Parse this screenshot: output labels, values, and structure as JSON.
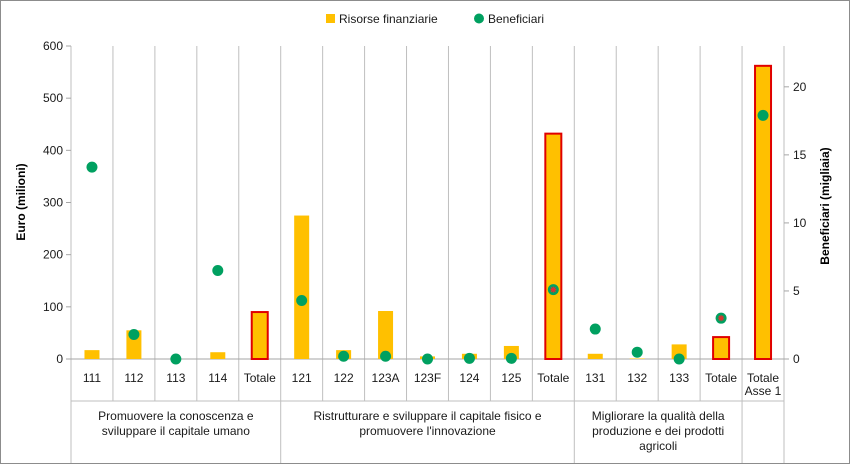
{
  "chart_data": {
    "type": "bar",
    "legend": [
      {
        "name": "Risorse finanziarie",
        "color": "#FFC000",
        "marker": "square"
      },
      {
        "name": "Beneficiari",
        "color": "#00A060",
        "marker": "circle"
      }
    ],
    "legend_position": "top-center",
    "ylabel_left": "Euro (milioni)",
    "ylabel_right": "Beneficiari (migliaia)",
    "ylim_left": [
      0,
      600
    ],
    "ylim_right": [
      0,
      23
    ],
    "yticks_left": [
      "0",
      "100",
      "200",
      "300",
      "400",
      "500",
      "600"
    ],
    "yticks_right": [
      "0",
      "5",
      "10",
      "15",
      "20"
    ],
    "grid": "vertical category separators",
    "categories": [
      "111",
      "112",
      "113",
      "114",
      "Totale",
      "121",
      "122",
      "123A",
      "123F",
      "124",
      "125",
      "Totale",
      "131",
      "132",
      "133",
      "Totale",
      "Totale Asse 1"
    ],
    "category_labels": [
      [
        "111"
      ],
      [
        "112"
      ],
      [
        "113"
      ],
      [
        "114"
      ],
      [
        "Totale"
      ],
      [
        "121"
      ],
      [
        "122"
      ],
      [
        "123A"
      ],
      [
        "123F"
      ],
      [
        "124"
      ],
      [
        "125"
      ],
      [
        "Totale"
      ],
      [
        "131"
      ],
      [
        "132"
      ],
      [
        "133"
      ],
      [
        "Totale"
      ],
      [
        "Totale",
        "Asse 1"
      ]
    ],
    "is_total": [
      false,
      false,
      false,
      false,
      true,
      false,
      false,
      false,
      false,
      false,
      false,
      true,
      false,
      false,
      false,
      true,
      true
    ],
    "series": [
      {
        "name": "Risorse finanziarie",
        "axis": "left",
        "values": [
          17,
          55,
          0,
          13,
          90,
          275,
          17,
          92,
          5,
          10,
          25,
          432,
          10,
          1,
          28,
          42,
          562
        ]
      },
      {
        "name": "Beneficiari",
        "axis": "right",
        "values": [
          14.1,
          1.8,
          0.0,
          6.5,
          null,
          4.3,
          0.2,
          0.2,
          0.0,
          0.05,
          0.05,
          5.1,
          2.2,
          0.5,
          0.0,
          3.0,
          17.9
        ]
      }
    ],
    "groups": [
      {
        "lines": [
          "Promuovere la conoscenza  e",
          "sviluppare il capitale umano"
        ],
        "start": 0,
        "end": 4
      },
      {
        "lines": [
          "Ristrutturare e sviluppare il capitale fisico e",
          "promuovere l'innovazione"
        ],
        "start": 5,
        "end": 11
      },
      {
        "lines": [
          "Migliorare la qualità della",
          "produzione e dei prodotti",
          "agricoli"
        ],
        "start": 12,
        "end": 15
      }
    ],
    "colors": {
      "bar": "#FFC000",
      "total_outline": "#E00000",
      "dot": "#00A060",
      "total_dot_star": "#E03030"
    }
  }
}
